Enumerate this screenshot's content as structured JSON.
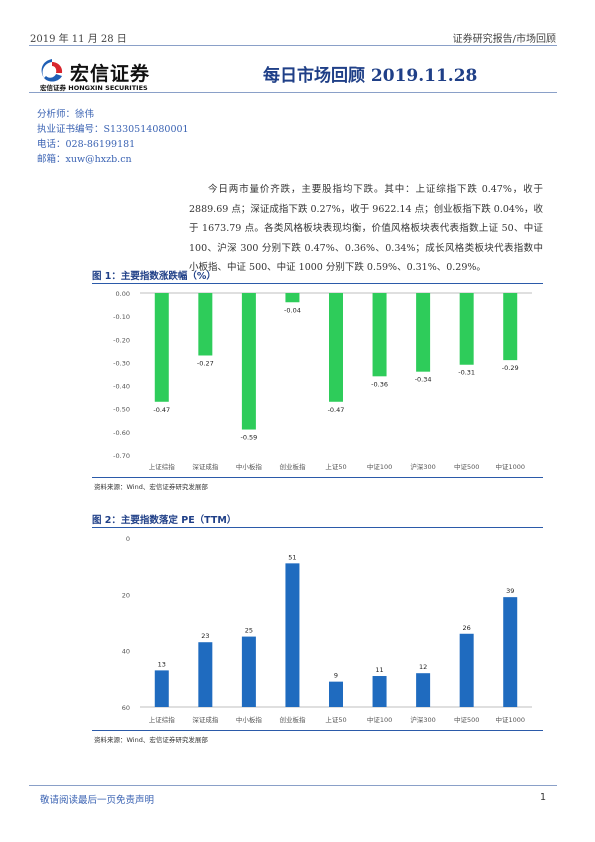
{
  "header": {
    "date": "2019 年 11 月 28 日",
    "category": "证券研究报告/市场回顾"
  },
  "logo": {
    "name": "宏信证券",
    "sub": "宏信证券 HONGXIN SECURITIES"
  },
  "title": "每日市场回顾 2019.11.28",
  "meta": {
    "analyst": "分析师：徐伟",
    "license": "执业证书编号：S1330514080001",
    "phone": "电话：028-86199181",
    "email": "邮箱：xuw@hxzb.cn"
  },
  "summary": "今日两市量价齐跌，主要股指均下跌。其中：上证综指下跌 0.47%，收于 2889.69 点；深证成指下跌 0.27%，收于 9622.14 点；创业板指下跌 0.04%，收于 1673.79 点。各类风格板块表现均衡，价值风格板块表代表指数上证 50、中证 100、沪深 300 分别下跌 0.47%、0.36%、0.34%；成长风格类板块代表指数中小板指、中证 500、中证 1000 分别下跌 0.59%、0.31%、0.29%。",
  "figures": {
    "fig1_title": "图 1：主要指数涨跌幅（%）",
    "fig1_source": "资料来源：Wind、宏信证券研究发展部",
    "fig2_title": "图 2：主要指数落定 PE（TTM）",
    "fig2_source": "资料来源：Wind、宏信证券研究发展部"
  },
  "chart_data": [
    {
      "type": "bar",
      "title": "主要指数涨跌幅（%）",
      "categories": [
        "上证综指",
        "深证成指",
        "中小板指",
        "创业板指",
        "上证50",
        "中证100",
        "沪深300",
        "中证500",
        "中证1000"
      ],
      "values": [
        -0.47,
        -0.27,
        -0.59,
        -0.04,
        -0.47,
        -0.36,
        -0.34,
        -0.31,
        -0.29
      ],
      "ylim": [
        -0.7,
        0.0
      ],
      "yticks": [
        "0.00",
        "-0.10",
        "-0.20",
        "-0.30",
        "-0.40",
        "-0.50",
        "-0.60",
        "-0.70"
      ],
      "labels": [
        "-0.47",
        "-0.27",
        "-0.59",
        "-0.04",
        "-0.47",
        "-0.36",
        "-0.34",
        "-0.31",
        "-0.29"
      ],
      "color": "#2ecc5a",
      "grid": false
    },
    {
      "type": "bar",
      "title": "主要指数落定 PE（TTM）",
      "categories": [
        "上证综指",
        "深证成指",
        "中小板指",
        "创业板指",
        "上证50",
        "中证100",
        "沪深300",
        "中证500",
        "中证1000"
      ],
      "values": [
        13,
        23,
        25,
        51,
        9,
        11,
        12,
        26,
        39
      ],
      "ylim": [
        0,
        60
      ],
      "yticks": [
        "0",
        "20",
        "40",
        "60"
      ],
      "labels": [
        "13",
        "23",
        "25",
        "51",
        "9",
        "11",
        "12",
        "26",
        "39"
      ],
      "color": "#1f6bbf",
      "grid": false
    }
  ],
  "footer": {
    "disclaimer": "敬请阅读最后一页免责声明",
    "page": "1"
  }
}
